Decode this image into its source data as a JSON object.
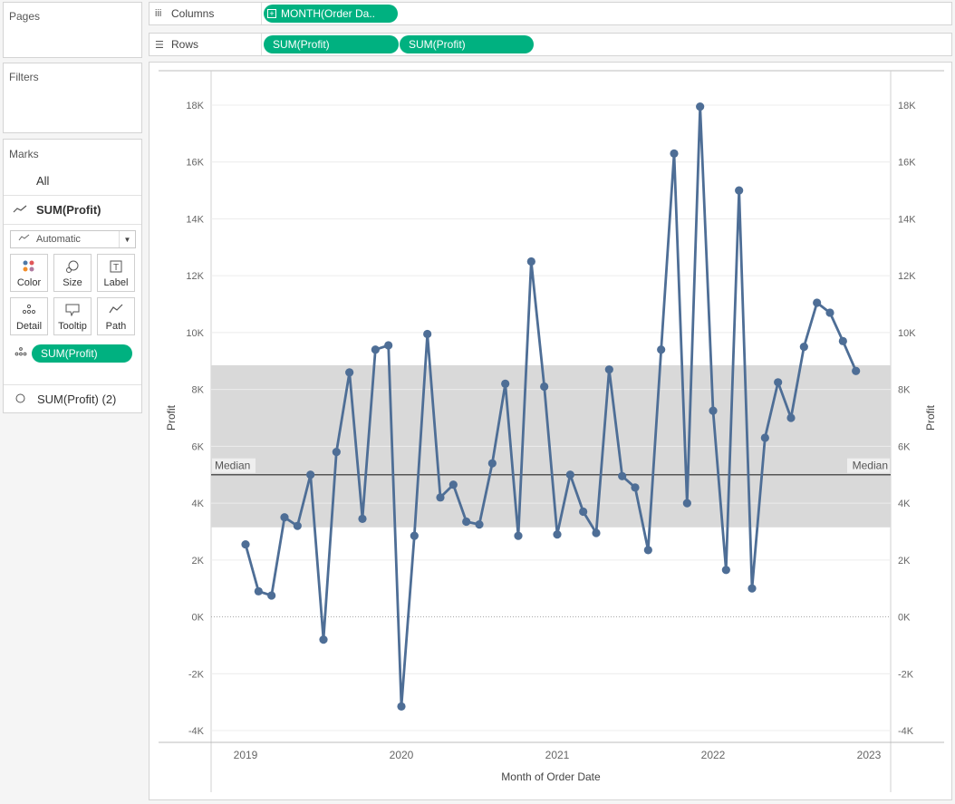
{
  "left_pane": {
    "pages_title": "Pages",
    "filters_title": "Filters",
    "marks_title": "Marks",
    "all_label": "All",
    "active_label": "SUM(Profit)",
    "mark_type": "Automatic",
    "buttons": {
      "color": "Color",
      "size": "Size",
      "label": "Label",
      "detail": "Detail",
      "tooltip": "Tooltip",
      "path": "Path"
    },
    "detail_pill": "SUM(Profit)",
    "second_label": "SUM(Profit) (2)"
  },
  "shelves": {
    "columns_label": "Columns",
    "columns_pill": "MONTH(Order Da..",
    "rows_label": "Rows",
    "rows_pill_1": "SUM(Profit)",
    "rows_pill_2": "SUM(Profit)"
  },
  "colors": {
    "line": "#4e6e96",
    "band": "#d9d9d9",
    "median": "#555555",
    "pill": "#00b180"
  },
  "chart_data": {
    "type": "line",
    "xlabel": "Month of Order Date",
    "ylabel": "Profit",
    "ylabel_right": "Profit",
    "ylim": [
      -4000,
      18000
    ],
    "y_ticks": [
      "-4K",
      "-2K",
      "0K",
      "2K",
      "4K",
      "6K",
      "8K",
      "10K",
      "12K",
      "14K",
      "16K",
      "18K"
    ],
    "x_ticks": [
      "2019",
      "2020",
      "2021",
      "2022",
      "2023"
    ],
    "x_start": "2019-01",
    "median_label": "Median",
    "median_value": 5000,
    "band_range": [
      3150,
      8850
    ],
    "series": [
      {
        "values": [
          2550,
          900,
          750,
          3500,
          3200,
          5000,
          -800,
          5800,
          8600,
          3450,
          9400,
          9550,
          -3150,
          2850,
          9950,
          4200,
          4650,
          3350,
          3250,
          5400,
          8200,
          2850,
          12500,
          8100,
          2900,
          5000,
          3700,
          2950,
          8700,
          4950,
          4550,
          2350,
          9400,
          16300,
          4000,
          17950,
          7250,
          1650,
          15000,
          1000,
          6300,
          8250,
          7000,
          9500,
          11050,
          10700,
          9700,
          8650
        ]
      }
    ]
  }
}
